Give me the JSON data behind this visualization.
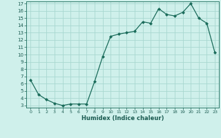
{
  "x": [
    0,
    1,
    2,
    3,
    4,
    5,
    6,
    7,
    8,
    9,
    10,
    11,
    12,
    13,
    14,
    15,
    16,
    17,
    18,
    19,
    20,
    21,
    22,
    23
  ],
  "y": [
    6.5,
    4.5,
    3.8,
    3.3,
    3.0,
    3.2,
    3.2,
    3.2,
    6.3,
    9.7,
    12.5,
    12.8,
    13.0,
    13.2,
    14.5,
    14.3,
    16.3,
    15.5,
    15.3,
    15.8,
    17.0,
    15.0,
    14.3,
    10.3
  ],
  "xlabel": "Humidex (Indice chaleur)",
  "xlim": [
    -0.5,
    23.5
  ],
  "ylim": [
    2.7,
    17.3
  ],
  "yticks": [
    3,
    4,
    5,
    6,
    7,
    8,
    9,
    10,
    11,
    12,
    13,
    14,
    15,
    16,
    17
  ],
  "xticks": [
    0,
    1,
    2,
    3,
    4,
    5,
    6,
    7,
    8,
    9,
    10,
    11,
    12,
    13,
    14,
    15,
    16,
    17,
    18,
    19,
    20,
    21,
    22,
    23
  ],
  "line_color": "#1a6b5a",
  "marker_color": "#1a6b5a",
  "bg_color": "#cff0eb",
  "grid_color": "#a8d8d0",
  "axis_color": "#2d7a6a",
  "font_color": "#1a5a50"
}
